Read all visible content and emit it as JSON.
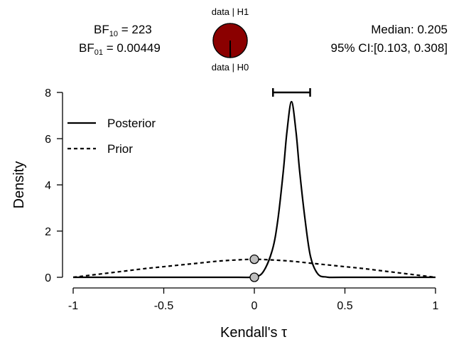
{
  "header": {
    "bf10_prefix": "BF",
    "bf10_sub": "10",
    "bf10_value": " = 223",
    "bf01_prefix": "BF",
    "bf01_sub": "01",
    "bf01_value": " = 0.00449",
    "pie_top_label": "data | H1",
    "pie_bottom_label": "data | H0",
    "median_text": "Median: 0.205",
    "ci_text": "95% CI:[0.103, 0.308]"
  },
  "pie": {
    "h1_fraction": 0.9955,
    "h1_color": "#8b0000",
    "h0_color": "#ffffff"
  },
  "chart_data": {
    "type": "line",
    "xlabel": "Kendall's τ",
    "ylabel": "Density",
    "xlim": [
      -1,
      1
    ],
    "ylim": [
      0,
      8
    ],
    "xticks": [
      -1,
      -0.5,
      0,
      0.5,
      1
    ],
    "xtick_labels": [
      "-1",
      "-0.5",
      "0",
      "0.5",
      "1"
    ],
    "yticks": [
      0,
      2,
      4,
      6,
      8
    ],
    "ytick_labels": [
      "0",
      "2",
      "4",
      "6",
      "8"
    ],
    "legend_position": "top-left",
    "grid": false,
    "series": [
      {
        "name": "Posterior",
        "style": "solid",
        "x": [
          -1,
          -0.5,
          -0.1,
          0,
          0.05,
          0.1,
          0.13,
          0.16,
          0.18,
          0.205,
          0.23,
          0.25,
          0.28,
          0.31,
          0.35,
          0.4,
          0.5,
          1
        ],
        "y": [
          0,
          0,
          0,
          0.02,
          0.25,
          1.2,
          2.5,
          4.6,
          6.3,
          7.6,
          6.3,
          4.6,
          2.5,
          0.9,
          0.15,
          0.01,
          0,
          0
        ]
      },
      {
        "name": "Prior",
        "style": "dashed",
        "x": [
          -1,
          -0.9,
          -0.8,
          -0.7,
          -0.6,
          -0.5,
          -0.4,
          -0.3,
          -0.2,
          -0.1,
          0,
          0.1,
          0.2,
          0.3,
          0.4,
          0.5,
          0.6,
          0.7,
          0.8,
          0.9,
          1
        ],
        "y": [
          0,
          0.095,
          0.19,
          0.285,
          0.38,
          0.46,
          0.54,
          0.62,
          0.7,
          0.75,
          0.78,
          0.75,
          0.7,
          0.62,
          0.54,
          0.46,
          0.38,
          0.285,
          0.19,
          0.095,
          0
        ]
      }
    ],
    "points": [
      {
        "x": 0,
        "y": 0.78
      },
      {
        "x": 0,
        "y": 0.0
      }
    ],
    "credible_interval": {
      "lower": 0.103,
      "upper": 0.308,
      "y": 8.0
    }
  }
}
